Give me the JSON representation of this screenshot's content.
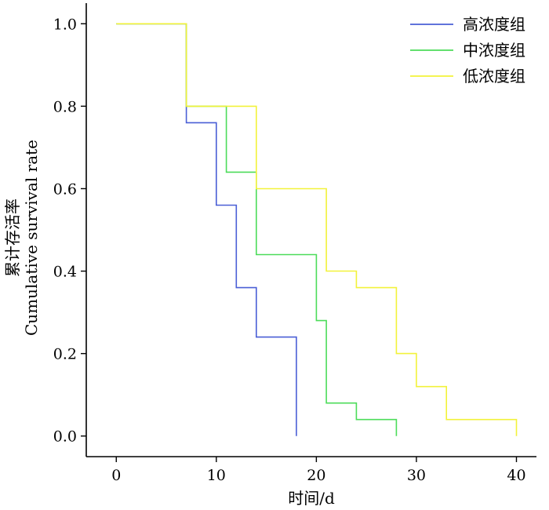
{
  "chart_data": {
    "type": "line",
    "step": true,
    "xlabel": "时间/d",
    "ylabel_lines": [
      "累计存活率",
      "Cumulative survival rate"
    ],
    "xlim": [
      -3,
      42
    ],
    "ylim": [
      -0.05,
      1.05
    ],
    "xticks": [
      0,
      10,
      20,
      30,
      40
    ],
    "xtick_labels": [
      "0",
      "10",
      "20",
      "30",
      "40"
    ],
    "yticks": [
      0.0,
      0.2,
      0.4,
      0.6,
      0.8,
      1.0
    ],
    "ytick_labels": [
      "0.0",
      "0.2",
      "0.4",
      "0.6",
      "0.8",
      "1.0"
    ],
    "grid": false,
    "legend_position": "top-right",
    "series": [
      {
        "name": "高浓度组",
        "color": "#4a5fd6",
        "x": [
          0,
          7,
          7,
          10,
          10,
          12,
          12,
          14,
          14,
          18,
          18
        ],
        "y": [
          1.0,
          1.0,
          0.76,
          0.76,
          0.56,
          0.56,
          0.36,
          0.36,
          0.24,
          0.24,
          0.0
        ]
      },
      {
        "name": "中浓度组",
        "color": "#4cdc5a",
        "x": [
          0,
          7,
          7,
          11,
          11,
          14,
          14,
          20,
          20,
          21,
          21,
          24,
          24,
          28,
          28
        ],
        "y": [
          1.0,
          1.0,
          0.8,
          0.8,
          0.64,
          0.64,
          0.44,
          0.44,
          0.28,
          0.28,
          0.08,
          0.08,
          0.04,
          0.04,
          0.0
        ]
      },
      {
        "name": "低浓度组",
        "color": "#f2f23a",
        "x": [
          0,
          7,
          7,
          14,
          14,
          21,
          21,
          24,
          24,
          28,
          28,
          30,
          30,
          33,
          33,
          40,
          40
        ],
        "y": [
          1.0,
          1.0,
          0.8,
          0.8,
          0.6,
          0.6,
          0.4,
          0.4,
          0.36,
          0.36,
          0.2,
          0.2,
          0.12,
          0.12,
          0.04,
          0.04,
          0.0
        ]
      }
    ]
  }
}
